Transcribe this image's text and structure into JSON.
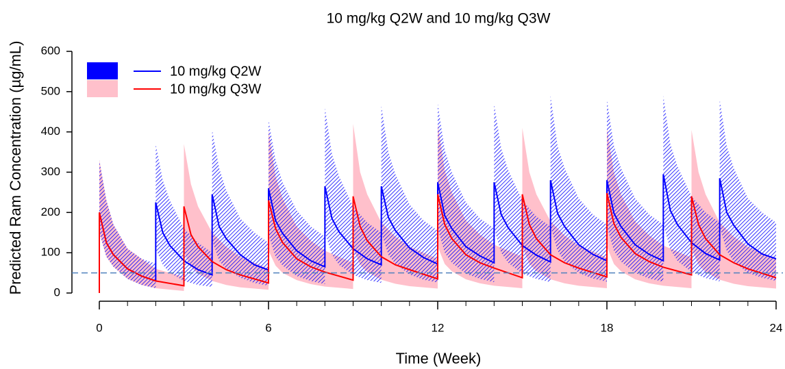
{
  "chart_data": {
    "type": "line-band",
    "title": "10 mg/kg Q2W and 10 mg/kg Q3W",
    "xlabel": "Time (Week)",
    "ylabel": "Predicted Ram Concentration (µg/mL)",
    "xlim": [
      0,
      24
    ],
    "ylim": [
      0,
      600
    ],
    "xticks": [
      0,
      6,
      12,
      18,
      24
    ],
    "xminorticks": [
      1,
      2,
      3,
      4,
      5,
      7,
      8,
      9,
      10,
      11,
      13,
      14,
      15,
      16,
      17,
      19,
      20,
      21,
      22,
      23
    ],
    "yticks": [
      0,
      100,
      200,
      300,
      400,
      500,
      600
    ],
    "hline": 50,
    "hline_color": "#4f81bd",
    "legend": "top-left",
    "series": [
      {
        "name": "10 mg/kg Q3W",
        "color": "#ff0000",
        "band_color": "#ffc0cb",
        "band_style": "solid",
        "x": [
          0,
          0,
          0.25,
          0.5,
          1,
          1.5,
          2,
          3,
          3,
          3.25,
          3.5,
          4,
          4.5,
          5,
          6,
          6,
          6.25,
          6.5,
          7,
          7.5,
          8,
          9,
          9,
          9.25,
          9.5,
          10,
          10.5,
          11,
          12,
          12,
          12.25,
          12.5,
          13,
          13.5,
          14,
          15,
          15,
          15.25,
          15.5,
          16,
          16.5,
          17,
          18,
          18,
          18.25,
          18.5,
          19,
          19.5,
          20,
          21,
          21,
          21.25,
          21.5,
          22,
          22.5,
          23,
          24
        ],
        "values": [
          0,
          200,
          125,
          95,
          60,
          42,
          30,
          18,
          215,
          145,
          115,
          78,
          58,
          45,
          25,
          230,
          160,
          125,
          85,
          65,
          52,
          32,
          240,
          165,
          130,
          90,
          70,
          58,
          35,
          245,
          170,
          135,
          95,
          75,
          62,
          38,
          245,
          170,
          135,
          95,
          75,
          62,
          40,
          248,
          172,
          138,
          98,
          78,
          64,
          45,
          240,
          170,
          135,
          95,
          75,
          60,
          38
        ],
        "upper": [
          0,
          330,
          230,
          170,
          110,
          85,
          60,
          40,
          370,
          270,
          215,
          150,
          115,
          90,
          60,
          405,
          290,
          235,
          165,
          130,
          105,
          75,
          420,
          300,
          245,
          175,
          140,
          115,
          85,
          420,
          305,
          250,
          180,
          145,
          120,
          90,
          410,
          300,
          245,
          178,
          143,
          118,
          88,
          410,
          300,
          245,
          178,
          143,
          118,
          88,
          405,
          300,
          245,
          175,
          140,
          115,
          85
        ],
        "lower": [
          0,
          150,
          90,
          65,
          35,
          20,
          12,
          5,
          100,
          65,
          48,
          30,
          20,
          14,
          8,
          105,
          68,
          50,
          32,
          22,
          16,
          10,
          110,
          70,
          52,
          33,
          23,
          17,
          11,
          115,
          72,
          54,
          34,
          24,
          18,
          12,
          115,
          72,
          54,
          34,
          24,
          18,
          12,
          115,
          72,
          54,
          34,
          24,
          18,
          12,
          110,
          70,
          52,
          33,
          23,
          17,
          11
        ]
      },
      {
        "name": "10 mg/kg Q2W",
        "color": "#0000ff",
        "band_color": "#0000ff",
        "band_style": "hatch",
        "x": [
          0,
          0,
          0.25,
          0.5,
          1,
          1.5,
          2,
          2,
          2.25,
          2.5,
          3,
          3.5,
          4,
          4,
          4.25,
          4.5,
          5,
          5.5,
          6,
          6,
          6.25,
          6.5,
          7,
          7.5,
          8,
          8,
          8.25,
          8.5,
          9,
          9.5,
          10,
          10,
          10.25,
          10.5,
          11,
          11.5,
          12,
          12,
          12.25,
          12.5,
          13,
          13.5,
          14,
          14,
          14.25,
          14.5,
          15,
          15.5,
          16,
          16,
          16.25,
          16.5,
          17,
          17.5,
          18,
          18,
          18.25,
          18.5,
          19,
          19.5,
          20,
          20,
          20.25,
          20.5,
          21,
          21.5,
          22,
          22,
          22.25,
          22.5,
          23,
          23.5,
          24
        ],
        "values": [
          0,
          200,
          125,
          95,
          60,
          42,
          30,
          225,
          150,
          118,
          80,
          58,
          45,
          245,
          165,
          135,
          95,
          70,
          57,
          260,
          180,
          148,
          105,
          80,
          65,
          265,
          185,
          152,
          110,
          85,
          70,
          265,
          188,
          155,
          112,
          88,
          72,
          275,
          192,
          160,
          115,
          92,
          75,
          275,
          195,
          162,
          118,
          94,
          77,
          280,
          198,
          165,
          120,
          96,
          80,
          280,
          198,
          165,
          120,
          96,
          80,
          295,
          205,
          170,
          125,
          98,
          82,
          285,
          200,
          168,
          122,
          97,
          85
        ],
        "upper": [
          0,
          330,
          230,
          170,
          110,
          85,
          73,
          370,
          280,
          230,
          160,
          125,
          100,
          405,
          310,
          255,
          185,
          150,
          125,
          430,
          330,
          275,
          205,
          165,
          140,
          460,
          345,
          290,
          215,
          175,
          150,
          465,
          350,
          295,
          220,
          180,
          155,
          470,
          355,
          300,
          225,
          185,
          160,
          470,
          360,
          305,
          230,
          190,
          165,
          490,
          365,
          310,
          235,
          195,
          170,
          480,
          365,
          310,
          235,
          195,
          170,
          490,
          370,
          315,
          240,
          200,
          175,
          480,
          365,
          310,
          235,
          200,
          175
        ],
        "lower": [
          0,
          150,
          90,
          65,
          35,
          20,
          12,
          110,
          70,
          50,
          30,
          20,
          15,
          130,
          80,
          60,
          38,
          25,
          18,
          145,
          90,
          68,
          42,
          30,
          22,
          150,
          95,
          70,
          45,
          32,
          25,
          150,
          95,
          72,
          46,
          33,
          26,
          160,
          100,
          75,
          48,
          35,
          27,
          160,
          100,
          75,
          48,
          35,
          27,
          165,
          105,
          78,
          50,
          36,
          28,
          165,
          105,
          78,
          50,
          36,
          28,
          170,
          108,
          80,
          52,
          37,
          29,
          165,
          105,
          78,
          50,
          38,
          30
        ]
      }
    ]
  }
}
